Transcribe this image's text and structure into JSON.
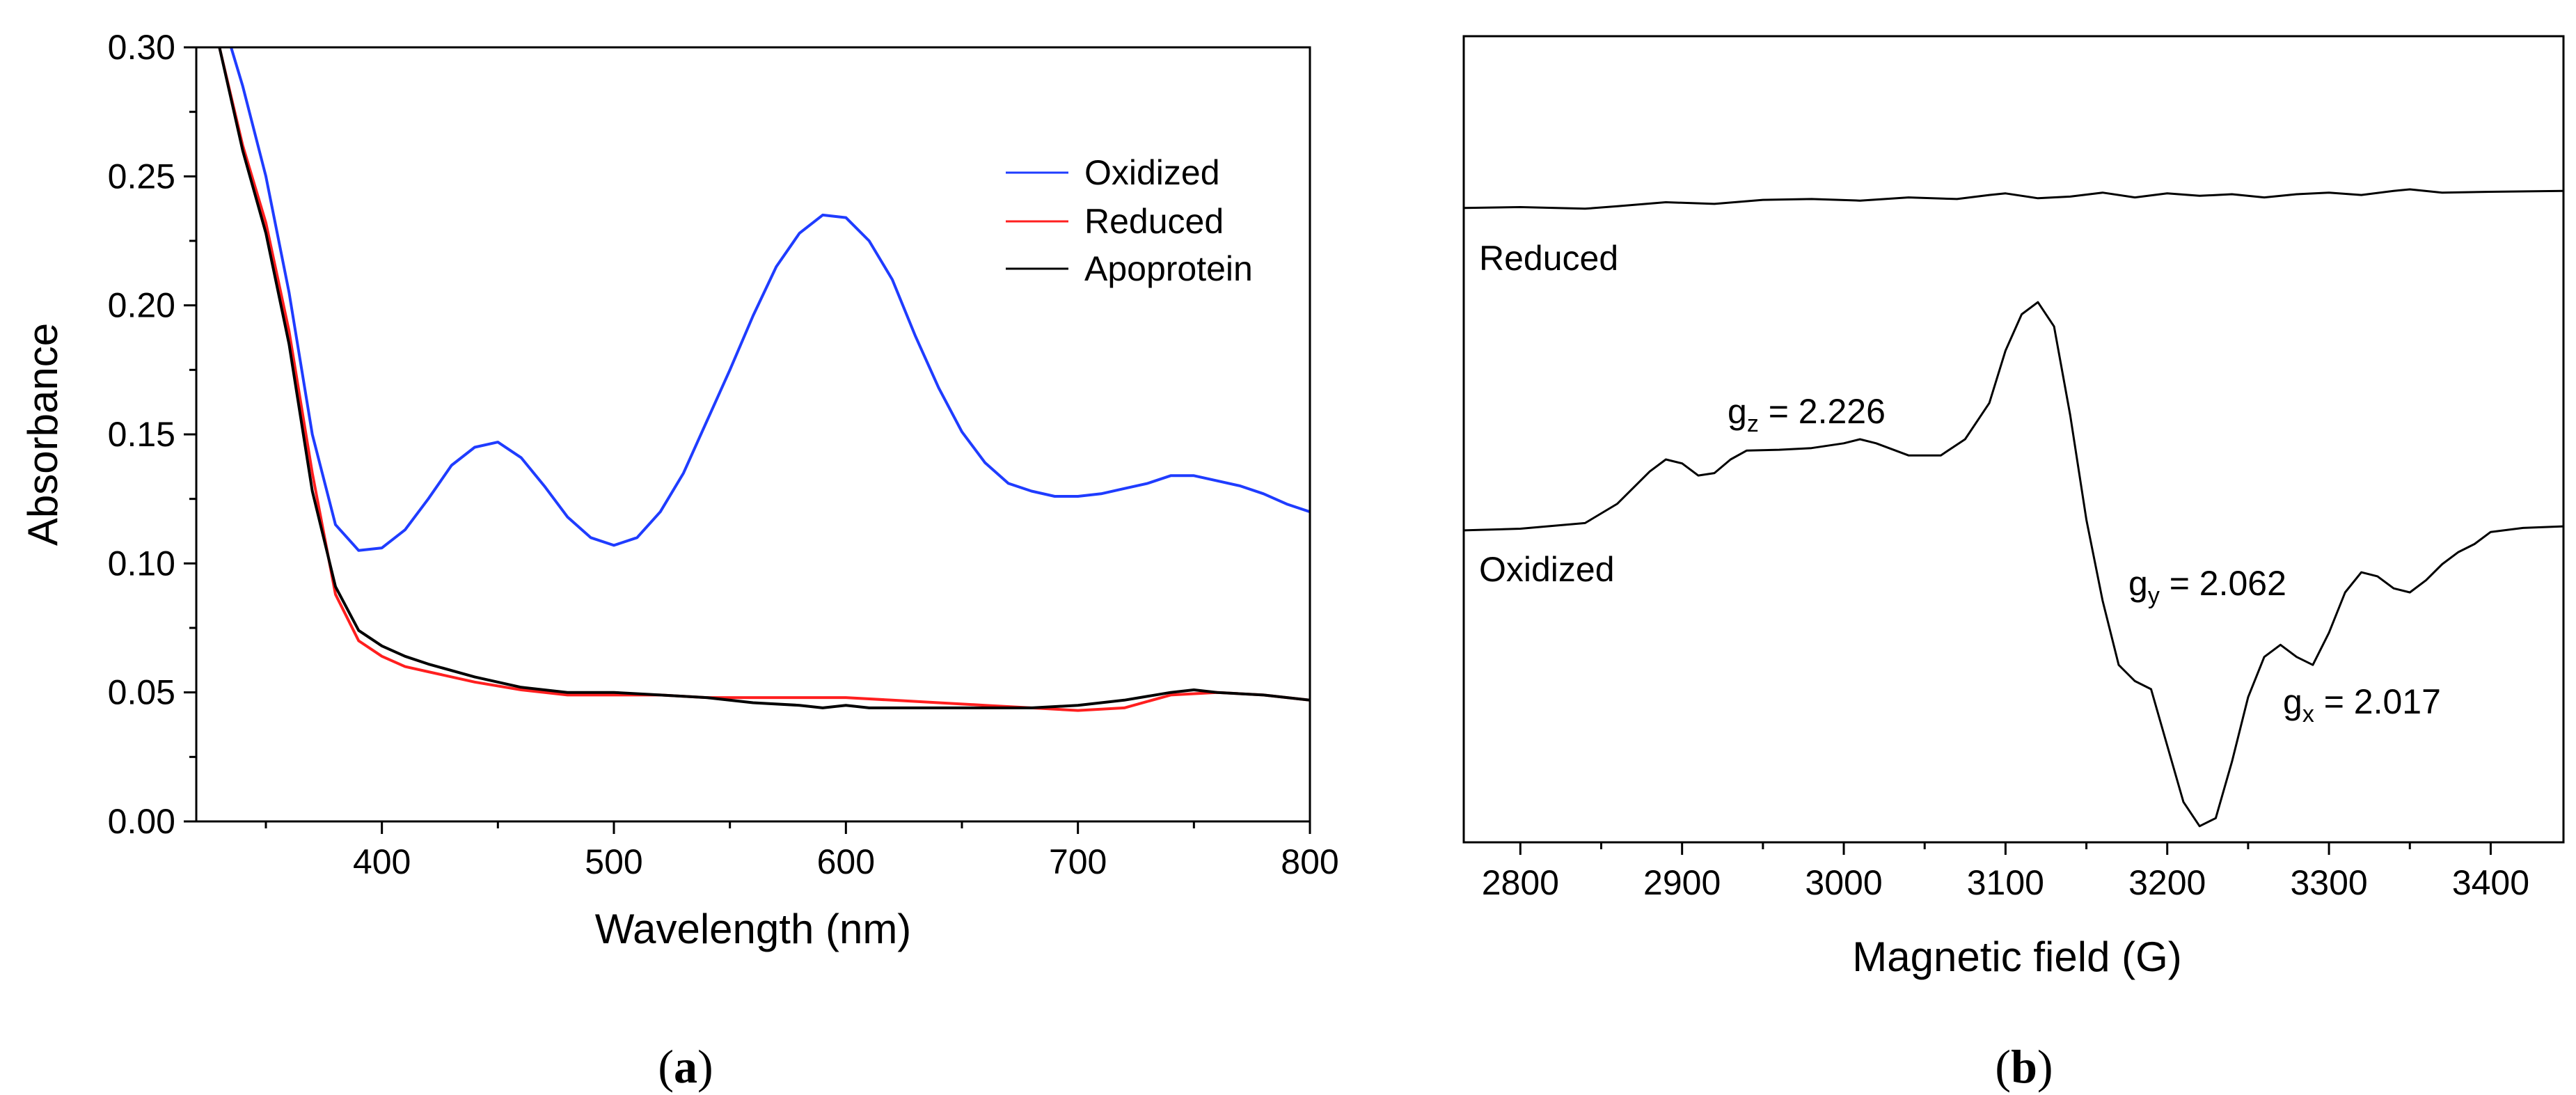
{
  "chart_data": [
    {
      "type": "line",
      "panel": "a",
      "xlabel": "Wavelength (nm)",
      "ylabel": "Absorbance",
      "xlim": [
        320,
        800
      ],
      "ylim": [
        0.0,
        0.3
      ],
      "xticks": [
        400,
        500,
        600,
        700,
        800
      ],
      "yticks": [
        0.0,
        0.05,
        0.1,
        0.15,
        0.2,
        0.25,
        0.3
      ],
      "xtick_labels": [
        "400",
        "500",
        "600",
        "700",
        "800"
      ],
      "ytick_labels": [
        "0.00",
        "0.05",
        "0.10",
        "0.15",
        "0.20",
        "0.25",
        "0.30"
      ],
      "legend_position": "top-right",
      "series": [
        {
          "name": "Oxidized",
          "color": "#1f3cff",
          "x": [
            335,
            340,
            350,
            360,
            370,
            380,
            390,
            400,
            410,
            420,
            430,
            440,
            450,
            460,
            470,
            480,
            490,
            500,
            510,
            520,
            530,
            540,
            550,
            560,
            570,
            580,
            590,
            600,
            610,
            620,
            630,
            640,
            650,
            660,
            670,
            680,
            690,
            700,
            710,
            720,
            730,
            740,
            750,
            760,
            770,
            780,
            790,
            800
          ],
          "values": [
            0.3,
            0.285,
            0.25,
            0.205,
            0.15,
            0.115,
            0.105,
            0.106,
            0.113,
            0.125,
            0.138,
            0.145,
            0.147,
            0.141,
            0.13,
            0.118,
            0.11,
            0.107,
            0.11,
            0.12,
            0.135,
            0.155,
            0.175,
            0.196,
            0.215,
            0.228,
            0.235,
            0.234,
            0.225,
            0.21,
            0.188,
            0.168,
            0.151,
            0.139,
            0.131,
            0.128,
            0.126,
            0.126,
            0.127,
            0.129,
            0.131,
            0.134,
            0.134,
            0.132,
            0.13,
            0.127,
            0.123,
            0.12
          ]
        },
        {
          "name": "Reduced",
          "color": "#ff1f1f",
          "x": [
            330,
            340,
            350,
            360,
            370,
            380,
            390,
            400,
            410,
            420,
            440,
            460,
            480,
            500,
            520,
            540,
            560,
            580,
            600,
            620,
            640,
            660,
            680,
            700,
            720,
            740,
            760,
            780,
            800
          ],
          "values": [
            0.3,
            0.262,
            0.232,
            0.19,
            0.135,
            0.088,
            0.07,
            0.064,
            0.06,
            0.058,
            0.054,
            0.051,
            0.049,
            0.049,
            0.049,
            0.048,
            0.048,
            0.048,
            0.048,
            0.047,
            0.046,
            0.045,
            0.044,
            0.043,
            0.044,
            0.049,
            0.05,
            0.049,
            0.047
          ]
        },
        {
          "name": "Apoprotein",
          "color": "#000000",
          "x": [
            330,
            340,
            350,
            360,
            370,
            380,
            390,
            400,
            410,
            420,
            440,
            460,
            480,
            500,
            520,
            540,
            560,
            580,
            590,
            600,
            610,
            620,
            640,
            660,
            680,
            700,
            720,
            740,
            750,
            760,
            780,
            800
          ],
          "values": [
            0.3,
            0.26,
            0.228,
            0.185,
            0.128,
            0.091,
            0.074,
            0.068,
            0.064,
            0.061,
            0.056,
            0.052,
            0.05,
            0.05,
            0.049,
            0.048,
            0.046,
            0.045,
            0.044,
            0.045,
            0.044,
            0.044,
            0.044,
            0.044,
            0.044,
            0.045,
            0.047,
            0.05,
            0.051,
            0.05,
            0.049,
            0.047
          ]
        }
      ]
    },
    {
      "type": "line",
      "panel": "b",
      "xlabel": "Magnetic field (G)",
      "ylabel": "",
      "xlim": [
        2765,
        3445
      ],
      "ylim": [
        0.0,
        1.0
      ],
      "y_ticks_shown": false,
      "xticks": [
        2800,
        2900,
        3000,
        3100,
        3200,
        3300,
        3400
      ],
      "xtick_labels": [
        "2800",
        "2900",
        "3000",
        "3100",
        "3200",
        "3300",
        "3400"
      ],
      "series": [
        {
          "name": "Reduced",
          "color": "#000000",
          "x": [
            2765,
            2800,
            2840,
            2860,
            2890,
            2920,
            2950,
            2980,
            3010,
            3040,
            3070,
            3090,
            3100,
            3120,
            3140,
            3160,
            3180,
            3200,
            3220,
            3240,
            3260,
            3280,
            3300,
            3320,
            3340,
            3350,
            3370,
            3400,
            3445
          ],
          "values": [
            0.787,
            0.788,
            0.786,
            0.789,
            0.794,
            0.792,
            0.797,
            0.798,
            0.796,
            0.8,
            0.798,
            0.803,
            0.805,
            0.799,
            0.801,
            0.806,
            0.8,
            0.805,
            0.802,
            0.804,
            0.8,
            0.804,
            0.806,
            0.803,
            0.808,
            0.81,
            0.806,
            0.807,
            0.808
          ]
        },
        {
          "name": "Oxidized",
          "color": "#000000",
          "x": [
            2765,
            2800,
            2840,
            2860,
            2880,
            2890,
            2900,
            2910,
            2920,
            2930,
            2940,
            2960,
            2980,
            3000,
            3010,
            3020,
            3040,
            3060,
            3075,
            3090,
            3100,
            3110,
            3120,
            3130,
            3140,
            3150,
            3160,
            3170,
            3180,
            3190,
            3200,
            3210,
            3220,
            3230,
            3240,
            3250,
            3260,
            3270,
            3280,
            3290,
            3300,
            3310,
            3320,
            3330,
            3340,
            3350,
            3360,
            3370,
            3380,
            3390,
            3400,
            3420,
            3445
          ],
          "values": [
            0.387,
            0.389,
            0.396,
            0.42,
            0.46,
            0.475,
            0.47,
            0.455,
            0.458,
            0.475,
            0.486,
            0.487,
            0.489,
            0.495,
            0.5,
            0.495,
            0.48,
            0.48,
            0.5,
            0.545,
            0.61,
            0.655,
            0.67,
            0.64,
            0.53,
            0.4,
            0.3,
            0.22,
            0.2,
            0.19,
            0.12,
            0.05,
            0.02,
            0.03,
            0.1,
            0.18,
            0.23,
            0.245,
            0.23,
            0.22,
            0.26,
            0.31,
            0.335,
            0.33,
            0.315,
            0.31,
            0.325,
            0.345,
            0.36,
            0.37,
            0.385,
            0.39,
            0.392
          ]
        }
      ],
      "annotations": [
        {
          "label": "Reduced"
        },
        {
          "label": "Oxidized"
        },
        {
          "base": "g",
          "sub": "z",
          "rest": " = 2.226"
        },
        {
          "base": "g",
          "sub": "y",
          "rest": " = 2.062"
        },
        {
          "base": "g",
          "sub": "x",
          "rest": " = 2.017"
        }
      ]
    }
  ],
  "panels": {
    "a": {
      "open": "(",
      "letter": "a",
      "close": ")"
    },
    "b": {
      "open": "(",
      "letter": "b",
      "close": ")"
    }
  }
}
